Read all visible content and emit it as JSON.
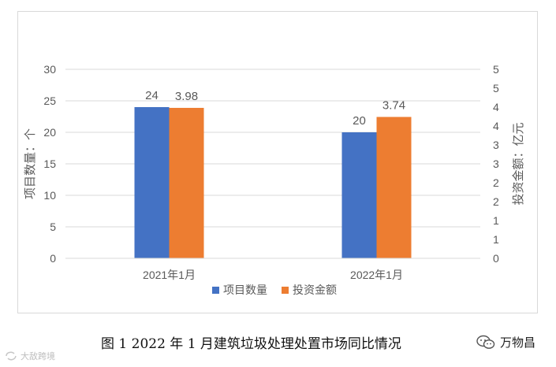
{
  "chart_data": {
    "type": "bar",
    "categories": [
      "2021年1月",
      "2022年1月"
    ],
    "series": [
      {
        "name": "项目数量",
        "values": [
          24,
          20
        ],
        "labels": [
          "24",
          "20"
        ],
        "color": "#4472C4",
        "axis": "left"
      },
      {
        "name": "投资金额",
        "values": [
          3.98,
          3.74
        ],
        "labels": [
          "3.98",
          "3.74"
        ],
        "color": "#ED7D31",
        "axis": "right"
      }
    ],
    "y_left": {
      "label": "项目数量：个",
      "ylim": [
        0,
        30
      ],
      "ticks": [
        "0",
        "5",
        "10",
        "15",
        "20",
        "25",
        "30"
      ]
    },
    "y_right": {
      "label": "投资金额：亿元",
      "ylim": [
        0,
        5
      ],
      "ticks": [
        "0",
        "1",
        "1",
        "2",
        "2",
        "3",
        "3",
        "4",
        "4",
        "5",
        "5"
      ]
    },
    "grid": true,
    "legend_position": "bottom"
  },
  "caption": "图 1  2022 年 1 月建筑垃圾处理处置市场同比情况",
  "brand": {
    "name": "万物昌",
    "icon": "wechat-icon"
  },
  "watermark": {
    "text": "大敌跨境",
    "icon": "logo-icon"
  },
  "colors": {
    "gridline": "#d9d9d9",
    "axis_text": "#595959"
  }
}
